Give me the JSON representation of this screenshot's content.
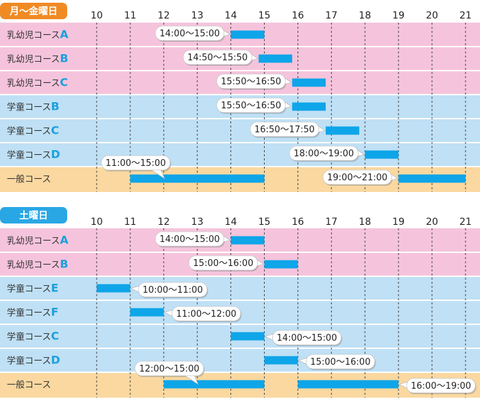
{
  "colors": {
    "pink_row": "#f5c4dc",
    "blue_row": "#bfe0f5",
    "orange_row": "#fad8a0",
    "bar": "#0ea5e9",
    "header_orange": "#f08a24",
    "header_blue": "#29a7e4",
    "separator": "#ffffff",
    "guide": "#444444"
  },
  "hour_labels": [
    "10",
    "11",
    "12",
    "13",
    "14",
    "15",
    "16",
    "17",
    "18",
    "19",
    "20",
    "21"
  ],
  "sections": [
    {
      "title": "月～金曜日",
      "header_color": "#f08a24",
      "rows": [
        {
          "label": "乳幼児コース",
          "letter": "A",
          "color": "pink",
          "bars": [
            {
              "start": 14,
              "end": 15,
              "label": "14:00～15:00",
              "bubble": "left"
            }
          ]
        },
        {
          "label": "乳幼児コース",
          "letter": "B",
          "color": "pink",
          "bars": [
            {
              "start": 14.83,
              "end": 15.83,
              "label": "14:50～15:50",
              "bubble": "left"
            }
          ]
        },
        {
          "label": "乳幼児コース",
          "letter": "C",
          "color": "pink",
          "bars": [
            {
              "start": 15.83,
              "end": 16.83,
              "label": "15:50～16:50",
              "bubble": "left"
            }
          ]
        },
        {
          "label": "学童コース",
          "letter": "B",
          "color": "blue",
          "bars": [
            {
              "start": 15.83,
              "end": 16.83,
              "label": "15:50～16:50",
              "bubble": "left"
            }
          ]
        },
        {
          "label": "学童コース",
          "letter": "C",
          "color": "blue",
          "bars": [
            {
              "start": 16.83,
              "end": 17.83,
              "label": "16:50～17:50",
              "bubble": "left"
            }
          ]
        },
        {
          "label": "学童コース",
          "letter": "D",
          "color": "blue",
          "bars": [
            {
              "start": 18,
              "end": 19,
              "label": "18:00～19:00",
              "bubble": "left"
            }
          ]
        },
        {
          "label": "一般コース",
          "letter": "",
          "color": "orange",
          "bars": [
            {
              "start": 11,
              "end": 15,
              "label": "11:00～15:00",
              "bubble": "above"
            },
            {
              "start": 19,
              "end": 21,
              "label": "19:00～21:00",
              "bubble": "left"
            }
          ]
        }
      ]
    },
    {
      "title": "土曜日",
      "header_color": "#29a7e4",
      "rows": [
        {
          "label": "乳幼児コース",
          "letter": "A",
          "color": "pink",
          "bars": [
            {
              "start": 14,
              "end": 15,
              "label": "14:00～15:00",
              "bubble": "left"
            }
          ]
        },
        {
          "label": "乳幼児コース",
          "letter": "B",
          "color": "pink",
          "bars": [
            {
              "start": 15,
              "end": 16,
              "label": "15:00～16:00",
              "bubble": "left"
            }
          ]
        },
        {
          "label": "学童コース",
          "letter": "E",
          "color": "blue",
          "bars": [
            {
              "start": 10,
              "end": 11,
              "label": "10:00～11:00",
              "bubble": "right"
            }
          ]
        },
        {
          "label": "学童コース",
          "letter": "F",
          "color": "blue",
          "bars": [
            {
              "start": 11,
              "end": 12,
              "label": "11:00～12:00",
              "bubble": "right"
            }
          ]
        },
        {
          "label": "学童コース",
          "letter": "C",
          "color": "blue",
          "bars": [
            {
              "start": 14,
              "end": 15,
              "label": "14:00～15:00",
              "bubble": "right"
            }
          ]
        },
        {
          "label": "学童コース",
          "letter": "D",
          "color": "blue",
          "bars": [
            {
              "start": 15,
              "end": 16,
              "label": "15:00～16:00",
              "bubble": "right"
            }
          ]
        },
        {
          "label": "一般コース",
          "letter": "",
          "color": "orange",
          "bars": [
            {
              "start": 12,
              "end": 15,
              "label": "12:00～15:00",
              "bubble": "above"
            },
            {
              "start": 16,
              "end": 19,
              "label": "16:00～19:00",
              "bubble": "right"
            }
          ]
        }
      ]
    }
  ]
}
